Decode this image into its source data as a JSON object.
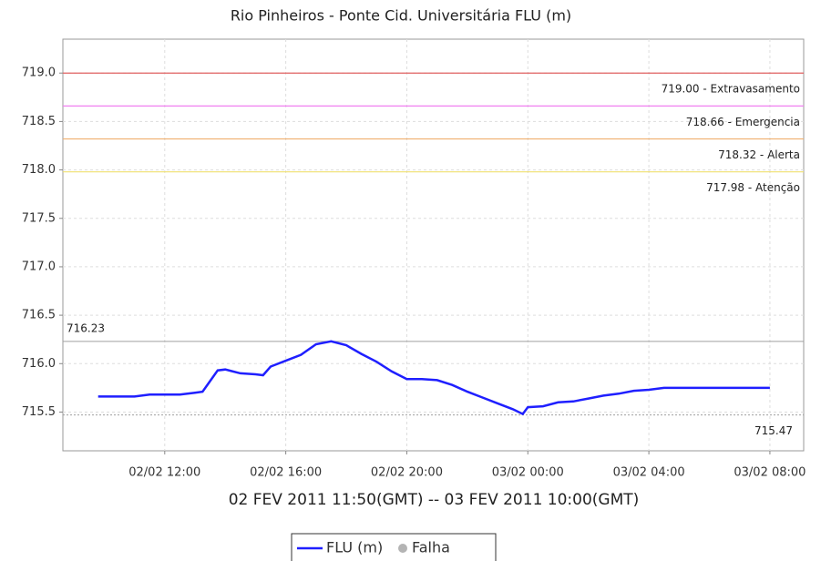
{
  "chart_data": {
    "type": "line",
    "title": "Rio Pinheiros - Ponte Cid. Universitária FLU (m)",
    "x_label": "02 FEV 2011 11:50(GMT) -- 03 FEV 2011 10:00(GMT)",
    "x": [
      "2011-02-02T09:48",
      "2011-02-02T10:30",
      "2011-02-02T11:00",
      "2011-02-02T11:30",
      "2011-02-02T12:00",
      "2011-02-02T12:30",
      "2011-02-02T13:00",
      "2011-02-02T13:15",
      "2011-02-02T13:30",
      "2011-02-02T13:45",
      "2011-02-02T14:00",
      "2011-02-02T14:30",
      "2011-02-02T15:00",
      "2011-02-02T15:15",
      "2011-02-02T15:30",
      "2011-02-02T16:00",
      "2011-02-02T16:30",
      "2011-02-02T17:00",
      "2011-02-02T17:30",
      "2011-02-02T18:00",
      "2011-02-02T18:30",
      "2011-02-02T19:00",
      "2011-02-02T19:30",
      "2011-02-02T20:00",
      "2011-02-02T20:30",
      "2011-02-02T21:00",
      "2011-02-02T21:30",
      "2011-02-02T22:00",
      "2011-02-02T22:30",
      "2011-02-02T23:00",
      "2011-02-02T23:30",
      "2011-02-02T23:50",
      "2011-02-03T00:00",
      "2011-02-03T00:30",
      "2011-02-03T01:00",
      "2011-02-03T01:30",
      "2011-02-03T02:00",
      "2011-02-03T02:30",
      "2011-02-03T03:00",
      "2011-02-03T03:30",
      "2011-02-03T04:00",
      "2011-02-03T04:30",
      "2011-02-03T05:00",
      "2011-02-03T06:00",
      "2011-02-03T07:00",
      "2011-02-03T08:00"
    ],
    "series": [
      {
        "name": "FLU (m)",
        "color": "#1f1fff",
        "values": [
          715.66,
          715.66,
          715.66,
          715.68,
          715.68,
          715.68,
          715.7,
          715.71,
          715.82,
          715.93,
          715.94,
          715.9,
          715.89,
          715.88,
          715.97,
          716.03,
          716.09,
          716.2,
          716.23,
          716.19,
          716.1,
          716.02,
          715.92,
          715.84,
          715.84,
          715.83,
          715.78,
          715.71,
          715.65,
          715.59,
          715.53,
          715.48,
          715.55,
          715.56,
          715.6,
          715.61,
          715.64,
          715.67,
          715.69,
          715.72,
          715.73,
          715.75,
          715.75,
          715.75,
          715.75,
          715.75
        ]
      }
    ],
    "legend_markers": [
      {
        "name": "Falha",
        "color": "#b4b4b4"
      }
    ],
    "xlim": [
      "2011-02-02T08:38",
      "2011-02-03T09:07"
    ],
    "xticks": [
      {
        "value": "2011-02-02T12:00",
        "label": "02/02 12:00"
      },
      {
        "value": "2011-02-02T16:00",
        "label": "02/02 16:00"
      },
      {
        "value": "2011-02-02T20:00",
        "label": "02/02 20:00"
      },
      {
        "value": "2011-02-03T00:00",
        "label": "03/02 00:00"
      },
      {
        "value": "2011-02-03T04:00",
        "label": "03/02 04:00"
      },
      {
        "value": "2011-02-03T08:00",
        "label": "03/02 08:00"
      }
    ],
    "ylim": [
      715.1,
      719.35
    ],
    "yticks": [
      715.5,
      {
        "value": 716,
        "label": "716.0"
      },
      716.5,
      {
        "value": 717,
        "label": "717.0"
      },
      717.5,
      {
        "value": 718,
        "label": "718.0"
      },
      718.5,
      {
        "value": 719,
        "label": "719.0"
      }
    ],
    "grid": true,
    "thresholds": [
      {
        "value": 719.0,
        "label": "719.00 - Extravasamento",
        "color": "#e06060"
      },
      {
        "value": 718.66,
        "label": "718.66 - Emergencia",
        "color": "#f080f0"
      },
      {
        "value": 718.32,
        "label": "718.32 - Alerta",
        "color": "#f0b070"
      },
      {
        "value": 717.98,
        "label": "717.98 - Atenção",
        "color": "#f0e070"
      }
    ],
    "max_line": {
      "value": 716.23,
      "label": "716.23",
      "color": "#a0a0a0"
    },
    "min_line": {
      "value": 715.47,
      "label": "715.47",
      "color": "#a0a0a0"
    }
  }
}
